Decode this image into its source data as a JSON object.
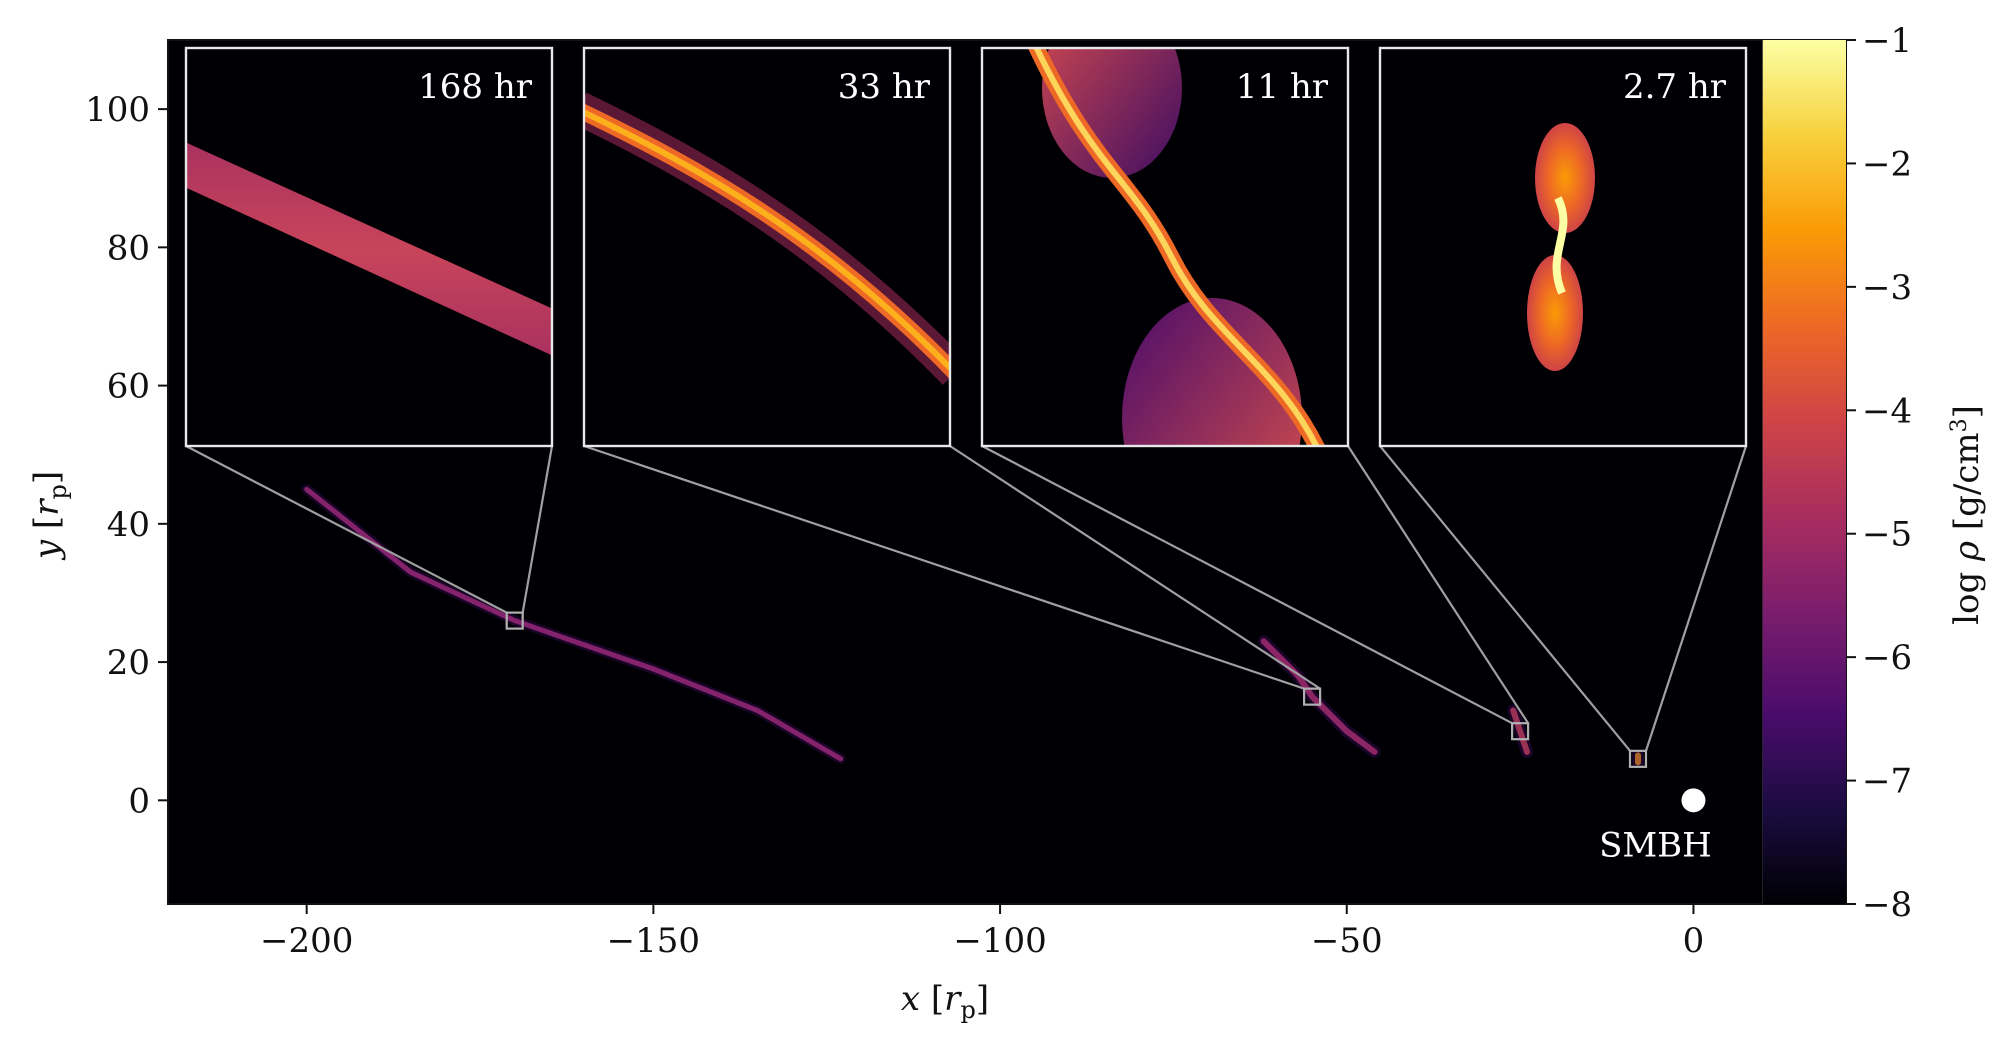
{
  "chart_data": {
    "type": "heatmap",
    "title": "",
    "xlabel": {
      "var": "x",
      "unit_open": " [",
      "unit_sym": "r",
      "unit_sub": "p",
      "unit_close": "]"
    },
    "ylabel": {
      "var": "y",
      "unit_open": " [",
      "unit_sym": "r",
      "unit_sub": "p",
      "unit_close": "]"
    },
    "xlim": [
      -220,
      22
    ],
    "ylim": [
      -15,
      110
    ],
    "colormap_region_xmax": 10,
    "xticks": [
      -200,
      -150,
      -100,
      -50,
      0
    ],
    "xtick_labels": [
      "−200",
      "−150",
      "−100",
      "−50",
      "0"
    ],
    "yticks": [
      0,
      20,
      40,
      60,
      80,
      100
    ],
    "ytick_labels": [
      "0",
      "20",
      "40",
      "60",
      "80",
      "100"
    ],
    "colorbar": {
      "label": "log ρ [g/cm³]",
      "label_var": "log ",
      "label_sym": "ρ",
      "label_unit": " [g/cm",
      "label_exp": "3",
      "label_close": "]",
      "range": [
        -8,
        -1
      ],
      "ticks": [
        -1,
        -2,
        -3,
        -4,
        -5,
        -6,
        -7,
        -8
      ],
      "tick_labels": [
        "−1",
        "−2",
        "−3",
        "−4",
        "−5",
        "−6",
        "−7",
        "−8"
      ],
      "colormap": "inferno"
    },
    "snapshots": [
      {
        "label": "168 hr",
        "box_center": [
          -170,
          26
        ],
        "inset_kind": "band"
      },
      {
        "label": "33 hr",
        "box_center": [
          -55,
          15
        ],
        "inset_kind": "stream"
      },
      {
        "label": "11 hr",
        "box_center": [
          -25,
          10
        ],
        "inset_kind": "swirl"
      },
      {
        "label": "2.7 hr",
        "box_center": [
          -8,
          6
        ],
        "inset_kind": "bipolar"
      }
    ],
    "streams": [
      {
        "points": [
          [
            -200,
            45
          ],
          [
            -185,
            33
          ],
          [
            -170,
            26
          ],
          [
            -150,
            19
          ],
          [
            -135,
            13
          ],
          [
            -123,
            6
          ]
        ],
        "color": "#b5367a"
      },
      {
        "points": [
          [
            -62,
            23
          ],
          [
            -57,
            18
          ],
          [
            -55,
            15
          ],
          [
            -50,
            10
          ],
          [
            -46,
            7
          ]
        ],
        "color": "#c3386d"
      },
      {
        "points": [
          [
            -26,
            13
          ],
          [
            -25,
            10
          ],
          [
            -24,
            7
          ]
        ],
        "color": "#d94d52"
      },
      {
        "points": [
          [
            -8,
            6.5
          ],
          [
            -8,
            5.5
          ]
        ],
        "color": "#f8a20c"
      }
    ],
    "smbh": {
      "label": "SMBH",
      "x": 0,
      "y": 0
    }
  }
}
